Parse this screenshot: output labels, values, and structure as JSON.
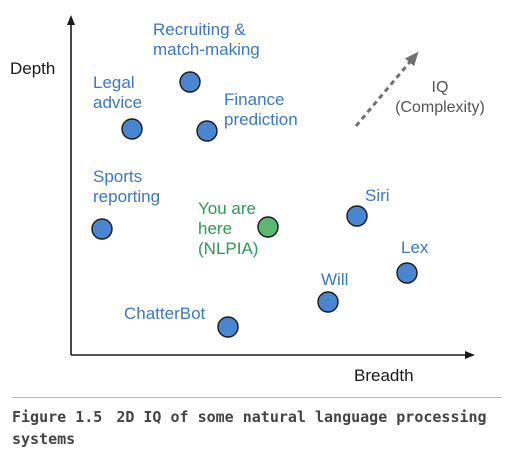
{
  "figure": {
    "y_axis_label": "Depth",
    "x_axis_label": "Breadth",
    "iq_arrow_label": "IQ\n(Complexity)",
    "caption_number": "Figure 1.5",
    "caption_text": "2D IQ of some natural language processing systems"
  },
  "systems": [
    {
      "key": "recruiting",
      "label": "Recruiting &\nmatch-making",
      "color": "#4a86d0"
    },
    {
      "key": "legal",
      "label": "Legal\nadvice",
      "color": "#4a86d0"
    },
    {
      "key": "finance",
      "label": "Finance\nprediction",
      "color": "#4a86d0"
    },
    {
      "key": "sports",
      "label": "Sports\nreporting",
      "color": "#4a86d0"
    },
    {
      "key": "nlpia",
      "label": "You are\nhere\n(NLPIA)",
      "color": "#5cb874",
      "highlight": true
    },
    {
      "key": "siri",
      "label": "Siri",
      "color": "#4a86d0"
    },
    {
      "key": "lex",
      "label": "Lex",
      "color": "#4a86d0"
    },
    {
      "key": "will",
      "label": "Will",
      "color": "#4a86d0"
    },
    {
      "key": "chatterbot",
      "label": "ChatterBot",
      "color": "#4a86d0"
    }
  ],
  "colors": {
    "axis": "#1a1a1a",
    "node_stroke": "#1a1a1a",
    "label_blue": "#3a78c4",
    "label_green": "#2e9a55",
    "iq_arrow": "#707070"
  }
}
